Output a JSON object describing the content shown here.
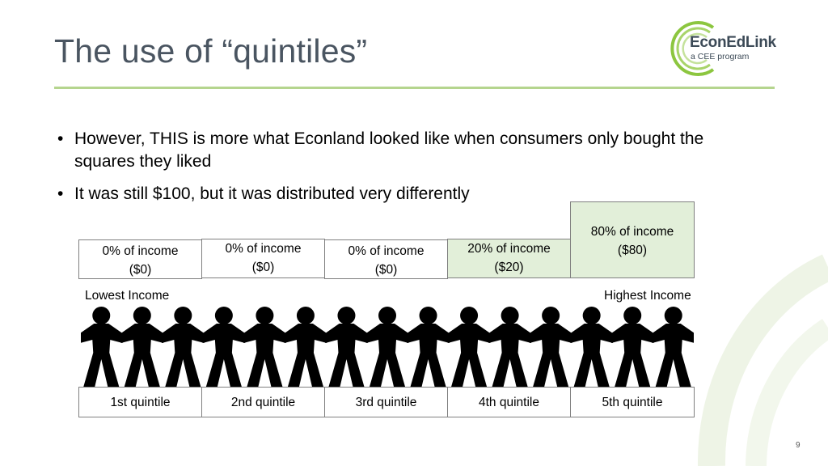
{
  "slide": {
    "title": "The use of “quintiles”",
    "page_number": "9"
  },
  "logo": {
    "name": "EconEdLink",
    "tagline": "a CEE program",
    "accent_color": "#8cc63f"
  },
  "bullets": [
    "However, THIS is more what Econland looked like when consumers only bought the squares they liked",
    "It was still $100, but it was distributed very differently"
  ],
  "income_boxes": [
    {
      "line1": "0% of income",
      "line2": "($0)",
      "share": 0
    },
    {
      "line1": "0% of income",
      "line2": "($0)",
      "share": 0
    },
    {
      "line1": "0% of income",
      "line2": "($0)",
      "share": 0
    },
    {
      "line1": "20% of income",
      "line2": "($20)",
      "share": 20
    },
    {
      "line1": "80% of income",
      "line2": "($80)",
      "share": 80
    }
  ],
  "axis_labels": {
    "lowest": "Lowest Income",
    "highest": "Highest Income"
  },
  "quintiles": [
    "1st quintile",
    "2nd quintile",
    "3rd quintile",
    "4th quintile",
    "5th quintile"
  ],
  "colors": {
    "title": "#4a5561",
    "rule": "#b5d58e",
    "highlight_box": "#e2efd9",
    "figures": "#000000"
  }
}
